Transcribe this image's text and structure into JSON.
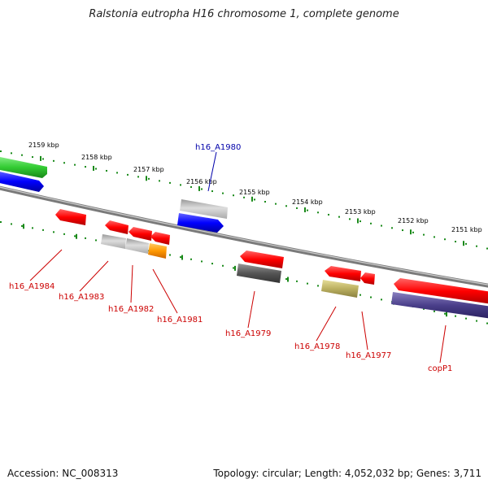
{
  "title": "Ralstonia eutropha H16 chromosome 1, complete genome",
  "footer": {
    "accession": "Accession: NC_008313",
    "topology": "Topology: circular; Length: 4,052,032 bp; Genes: 3,711"
  },
  "kbp_ticks": [
    "2159 kbp",
    "2158 kbp",
    "2157 kbp",
    "2156 kbp",
    "2155 kbp",
    "2154 kbp",
    "2153 kbp",
    "2152 kbp",
    "2151 kbp"
  ],
  "gene_labels": [
    {
      "name": "h16_A1980",
      "color": "#0000aa"
    },
    {
      "name": "h16_A1984",
      "color": "#cc0000"
    },
    {
      "name": "h16_A1983",
      "color": "#cc0000"
    },
    {
      "name": "h16_A1982",
      "color": "#cc0000"
    },
    {
      "name": "h16_A1981",
      "color": "#cc0000"
    },
    {
      "name": "h16_A1979",
      "color": "#cc0000"
    },
    {
      "name": "h16_A1978",
      "color": "#cc0000"
    },
    {
      "name": "h16_A1977",
      "color": "#cc0000"
    },
    {
      "name": "copP1",
      "color": "#cc0000"
    }
  ],
  "colors": {
    "backbone": "#888888",
    "tick_green": "#1a8a1a",
    "gene_red": "#ff0000",
    "gene_blue": "#0000ff",
    "gene_green": "#33cc33",
    "gene_gray": "#bbbbbb",
    "gene_dark_gray": "#555555",
    "gene_orange": "#ff9900",
    "gene_khaki": "#bbb060",
    "gene_purple": "#4a3f8a"
  }
}
